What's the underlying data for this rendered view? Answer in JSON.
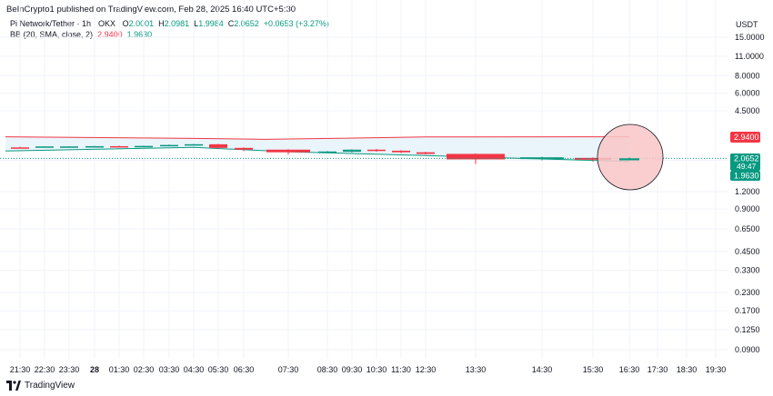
{
  "publish_line": "BeInCrypto1 published on TradingView.com, Feb 28, 2025 16:40 UTC+5:30",
  "legend": {
    "symbol": "Pi Network/Tether · 1h · OKX",
    "open_label": "O",
    "open": "2.0001",
    "high_label": "H",
    "high": "2.0981",
    "low_label": "L",
    "low": "1.9984",
    "close_label": "C",
    "close": "2.0652",
    "change": "+0.0653 (+3.27%)",
    "indicator": "BB (20, SMA, close, 2)",
    "bb_upper": "2.9400",
    "bb_lower": "1.9630"
  },
  "currency": "USDT",
  "footer_brand": "TradingView",
  "colors": {
    "up": "#089981",
    "down": "#f23645",
    "bb_upper": "#f23645",
    "bb_lower": "#089981",
    "bb_fill": "#e9f4fb",
    "highlight_fill": "#f9c5c7",
    "text": "#131722"
  },
  "price_badges": {
    "upper": "2.9400",
    "price": "2.0652",
    "countdown": "49:47",
    "lower": "1.9630"
  },
  "chart_data": {
    "type": "candlestick",
    "log_scale": true,
    "y_ticks": [
      "15.0000",
      "11.0000",
      "8.0000",
      "6.0000",
      "4.5000",
      "2.0000",
      "1.2000",
      "0.9000",
      "0.6500",
      "0.4500",
      "0.3300",
      "0.2300",
      "0.1700",
      "0.1250",
      "0.0900"
    ],
    "x_ticks": [
      {
        "label": "21:30",
        "i": 0
      },
      {
        "label": "22:30",
        "i": 1
      },
      {
        "label": "23:30",
        "i": 2
      },
      {
        "label": "28",
        "i": 3,
        "bold": true
      },
      {
        "label": "01:30",
        "i": 4
      },
      {
        "label": "02:30",
        "i": 5
      },
      {
        "label": "03:30",
        "i": 6
      },
      {
        "label": "04:30",
        "i": 7
      },
      {
        "label": "05:30",
        "i": 8
      },
      {
        "label": "06:30",
        "i": 9
      },
      {
        "label": "07:30",
        "i": 11
      },
      {
        "label": "08:30",
        "i": 13
      },
      {
        "label": "09:30",
        "i": 14
      },
      {
        "label": "10:30",
        "i": 15
      },
      {
        "label": "11:30",
        "i": 16
      },
      {
        "label": "12:30",
        "i": 17
      },
      {
        "label": "13:30",
        "i": 19
      },
      {
        "label": "14:30",
        "i": 22
      },
      {
        "label": "15:30",
        "i": 24
      },
      {
        "label": "16:30",
        "i": 25
      },
      {
        "label": "17:30",
        "i": 26
      },
      {
        "label": "18:30",
        "i": 27
      },
      {
        "label": "19:30",
        "i": 28
      }
    ],
    "candles": [
      {
        "i": 0,
        "o": 2.47,
        "h": 2.5,
        "l": 2.44,
        "c": 2.46
      },
      {
        "i": 1,
        "o": 2.5,
        "h": 2.52,
        "l": 2.47,
        "c": 2.51
      },
      {
        "i": 2,
        "o": 2.5,
        "h": 2.52,
        "l": 2.48,
        "c": 2.51
      },
      {
        "i": 3,
        "o": 2.51,
        "h": 2.53,
        "l": 2.49,
        "c": 2.52
      },
      {
        "i": 4,
        "o": 2.52,
        "h": 2.54,
        "l": 2.5,
        "c": 2.51
      },
      {
        "i": 5,
        "o": 2.51,
        "h": 2.54,
        "l": 2.49,
        "c": 2.53
      },
      {
        "i": 6,
        "o": 2.53,
        "h": 2.59,
        "l": 2.52,
        "c": 2.57
      },
      {
        "i": 7,
        "o": 2.57,
        "h": 2.62,
        "l": 2.56,
        "c": 2.6
      },
      {
        "i": 8,
        "o": 2.6,
        "h": 2.62,
        "l": 2.42,
        "c": 2.45
      },
      {
        "i": 9,
        "o": 2.45,
        "h": 2.47,
        "l": 2.33,
        "c": 2.38
      },
      {
        "i": 11,
        "o": 2.38,
        "h": 2.4,
        "l": 2.2,
        "c": 2.28
      },
      {
        "i": 13,
        "o": 2.3,
        "h": 2.33,
        "l": 2.27,
        "c": 2.31
      },
      {
        "i": 14,
        "o": 2.3,
        "h": 2.4,
        "l": 2.27,
        "c": 2.38
      },
      {
        "i": 15,
        "o": 2.38,
        "h": 2.41,
        "l": 2.3,
        "c": 2.34
      },
      {
        "i": 16,
        "o": 2.34,
        "h": 2.36,
        "l": 2.25,
        "c": 2.28
      },
      {
        "i": 17,
        "o": 2.28,
        "h": 2.3,
        "l": 2.2,
        "c": 2.22
      },
      {
        "i": 19,
        "o": 2.22,
        "h": 2.24,
        "l": 1.88,
        "c": 2.03
      },
      {
        "i": 22,
        "o": 2.04,
        "h": 2.12,
        "l": 2.0,
        "c": 2.1
      },
      {
        "i": 24,
        "o": 2.08,
        "h": 2.1,
        "l": 1.95,
        "c": 2.02
      },
      {
        "i": 25,
        "o": 2.0001,
        "h": 2.0981,
        "l": 1.9984,
        "c": 2.0652
      }
    ],
    "bb_upper": [
      {
        "i": 0,
        "v": 2.94
      },
      {
        "i": 7,
        "v": 2.86
      },
      {
        "i": 10,
        "v": 2.82
      },
      {
        "i": 17,
        "v": 2.93
      },
      {
        "i": 25,
        "v": 2.94
      }
    ],
    "bb_lower": [
      {
        "i": 0,
        "v": 2.33
      },
      {
        "i": 7,
        "v": 2.47
      },
      {
        "i": 11,
        "v": 2.3
      },
      {
        "i": 17,
        "v": 2.16
      },
      {
        "i": 25,
        "v": 1.963
      }
    ]
  }
}
